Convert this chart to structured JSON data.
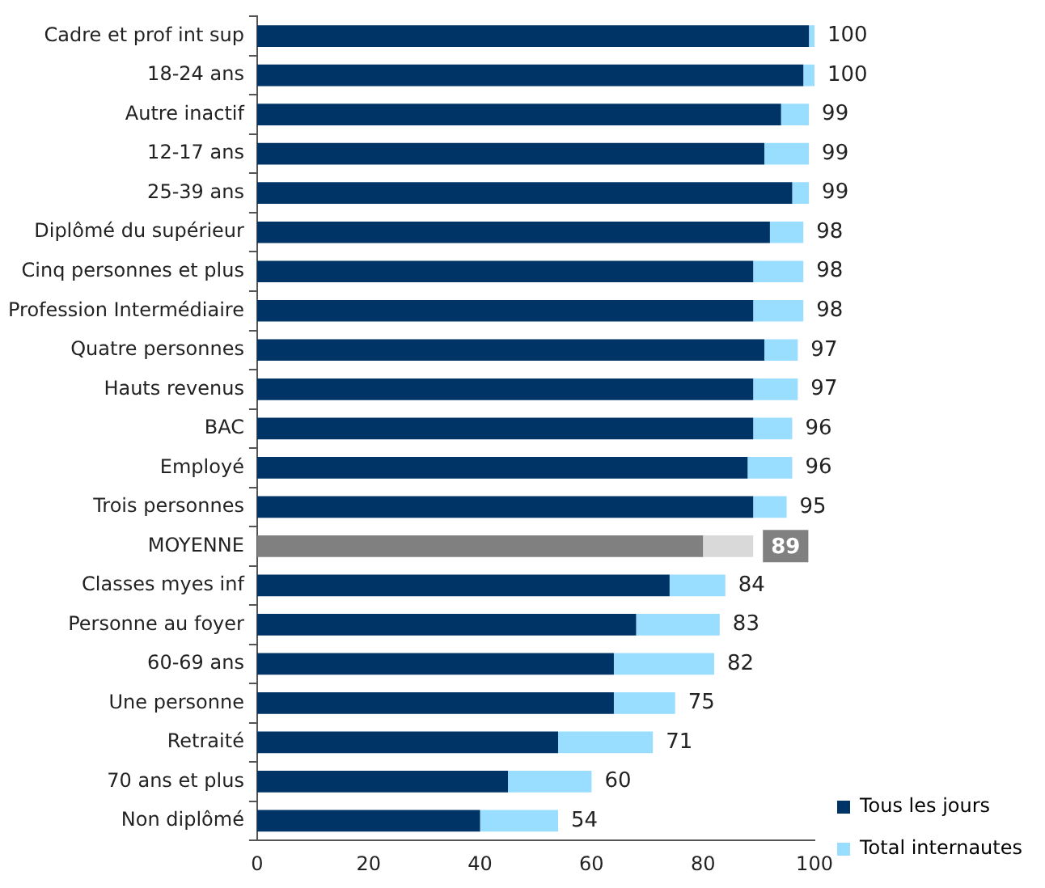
{
  "chart_data": {
    "type": "bar",
    "orientation": "horizontal",
    "stacked": true,
    "categories": [
      "Cadre et prof int sup",
      "18-24 ans",
      "Autre inactif",
      "12-17 ans",
      "25-39 ans",
      "Diplômé du supérieur",
      "Cinq personnes et plus",
      "Profession Intermédiaire",
      "Quatre personnes",
      "Hauts revenus",
      "BAC",
      "Employé",
      "Trois personnes",
      "MOYENNE",
      "Classes myes inf",
      "Personne au foyer",
      "60-69 ans",
      "Une personne",
      "Retraité",
      "70 ans et plus",
      "Non diplômé"
    ],
    "series": [
      {
        "name": "Tous les jours",
        "color": "#003366",
        "colors": [
          "#003366",
          "#003366",
          "#003366",
          "#003366",
          "#003366",
          "#003366",
          "#003366",
          "#003366",
          "#003366",
          "#003366",
          "#003366",
          "#003366",
          "#003366",
          "#808080",
          "#003366",
          "#003366",
          "#003366",
          "#003366",
          "#003366",
          "#003366",
          "#003366"
        ],
        "values": [
          99,
          98,
          94,
          91,
          96,
          92,
          89,
          89,
          91,
          89,
          89,
          88,
          89,
          80,
          74,
          68,
          64,
          64,
          54,
          45,
          40
        ]
      },
      {
        "name": "Total internautes",
        "color": "#99ddff",
        "colors": [
          "#99ddff",
          "#99ddff",
          "#99ddff",
          "#99ddff",
          "#99ddff",
          "#99ddff",
          "#99ddff",
          "#99ddff",
          "#99ddff",
          "#99ddff",
          "#99ddff",
          "#99ddff",
          "#99ddff",
          "#d9d9d9",
          "#99ddff",
          "#99ddff",
          "#99ddff",
          "#99ddff",
          "#99ddff",
          "#99ddff",
          "#99ddff"
        ],
        "values": [
          1,
          2,
          5,
          8,
          3,
          6,
          9,
          9,
          6,
          8,
          7,
          8,
          6,
          9,
          10,
          15,
          18,
          11,
          17,
          15,
          14
        ]
      }
    ],
    "totals": [
      "100",
      "100",
      "99",
      "99",
      "99",
      "98",
      "98",
      "98",
      "97",
      "97",
      "96",
      "96",
      "95",
      "89",
      "84",
      "83",
      "82",
      "75",
      "71",
      "60",
      "54"
    ],
    "xlim": [
      0,
      100
    ],
    "xticks": [
      0,
      20,
      40,
      60,
      80,
      100
    ],
    "grid": false,
    "legend": "bottom right"
  }
}
